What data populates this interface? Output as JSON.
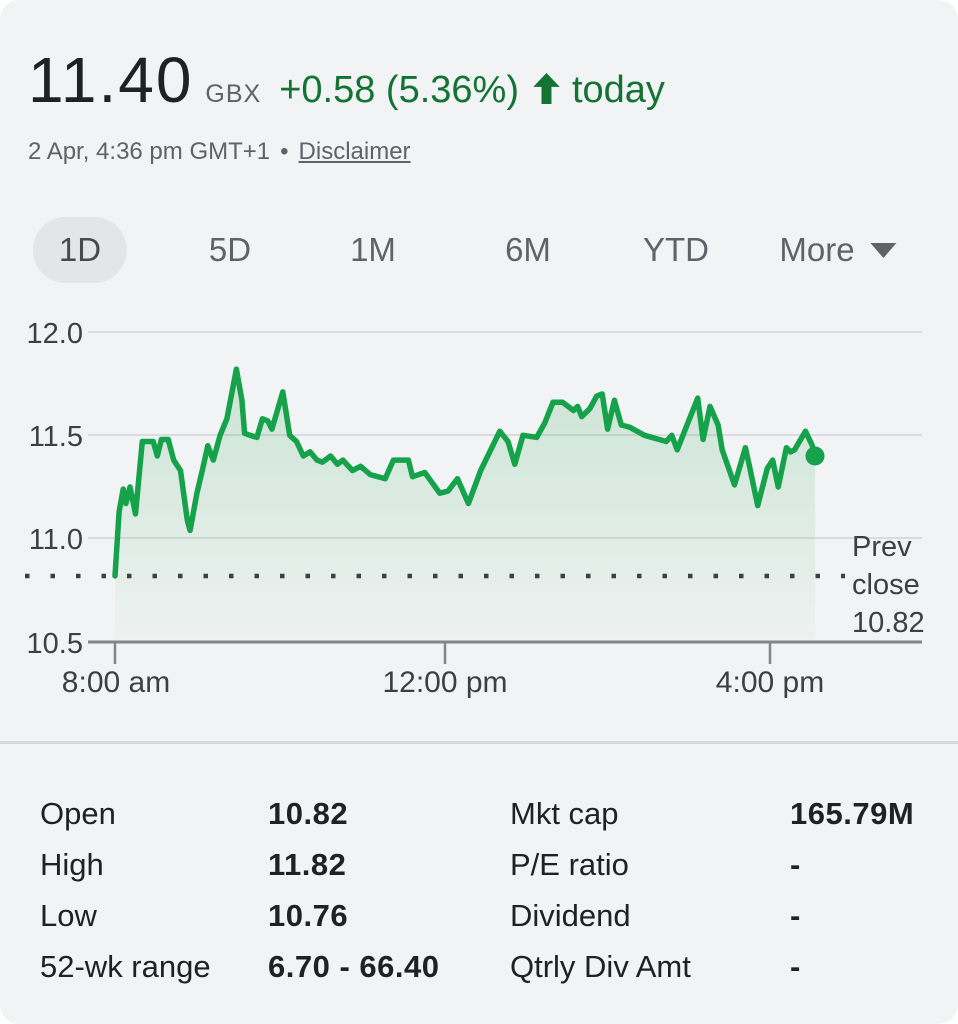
{
  "header": {
    "price": "11.40",
    "currency": "GBX",
    "change": "+0.58 (5.36%)",
    "direction": "up",
    "period": "today",
    "timestamp": "2 Apr, 4:36 pm GMT+1",
    "separator": "•",
    "disclaimer_label": "Disclaimer",
    "positive_color": "#137333"
  },
  "tabs": {
    "items": [
      {
        "label": "1D",
        "selected": true
      },
      {
        "label": "5D",
        "selected": false
      },
      {
        "label": "1M",
        "selected": false
      },
      {
        "label": "6M",
        "selected": false
      },
      {
        "label": "YTD",
        "selected": false
      },
      {
        "label": "More",
        "selected": false,
        "has_dropdown": true
      }
    ]
  },
  "chart_data": {
    "type": "area",
    "title": "1D intraday price chart",
    "x_unit": "minutes since 8:00 am",
    "x_ticks": [
      "8:00 am",
      "12:00 pm",
      "4:00 pm"
    ],
    "x_tick_minutes": [
      0,
      240,
      480
    ],
    "y_ticks": [
      "12.0",
      "11.5",
      "11.0",
      "10.5"
    ],
    "ylim": [
      10.5,
      12.0
    ],
    "xlim_minutes": [
      0,
      513
    ],
    "grid": true,
    "legend": "none",
    "prev_close": {
      "value": 10.82,
      "label_lines": [
        "Prev",
        "close",
        "10.82"
      ]
    },
    "colors": {
      "line": "#15a24b",
      "fill": "#34a853",
      "grid": "#d9dbde",
      "axis": "#80868b"
    },
    "series": [
      {
        "name": "price_gbx",
        "points": [
          [
            0,
            10.82
          ],
          [
            3,
            11.13
          ],
          [
            6,
            11.24
          ],
          [
            8,
            11.17
          ],
          [
            11,
            11.25
          ],
          [
            15,
            11.12
          ],
          [
            20,
            11.47
          ],
          [
            28,
            11.47
          ],
          [
            31,
            11.4
          ],
          [
            34,
            11.48
          ],
          [
            39,
            11.48
          ],
          [
            43,
            11.38
          ],
          [
            48,
            11.33
          ],
          [
            53,
            11.09
          ],
          [
            55,
            11.04
          ],
          [
            60,
            11.22
          ],
          [
            64,
            11.33
          ],
          [
            68,
            11.45
          ],
          [
            72,
            11.38
          ],
          [
            77,
            11.5
          ],
          [
            82,
            11.58
          ],
          [
            89,
            11.82
          ],
          [
            93,
            11.67
          ],
          [
            95,
            11.51
          ],
          [
            99,
            11.5
          ],
          [
            104,
            11.49
          ],
          [
            108,
            11.58
          ],
          [
            112,
            11.57
          ],
          [
            115,
            11.53
          ],
          [
            119,
            11.62
          ],
          [
            123,
            11.71
          ],
          [
            128,
            11.5
          ],
          [
            133,
            11.47
          ],
          [
            138,
            11.4
          ],
          [
            143,
            11.42
          ],
          [
            148,
            11.38
          ],
          [
            152,
            11.37
          ],
          [
            158,
            11.4
          ],
          [
            163,
            11.36
          ],
          [
            167,
            11.38
          ],
          [
            174,
            11.33
          ],
          [
            180,
            11.35
          ],
          [
            187,
            11.31
          ],
          [
            198,
            11.29
          ],
          [
            204,
            11.38
          ],
          [
            215,
            11.38
          ],
          [
            218,
            11.3
          ],
          [
            227,
            11.32
          ],
          [
            238,
            11.22
          ],
          [
            244,
            11.23
          ],
          [
            251,
            11.29
          ],
          [
            259,
            11.17
          ],
          [
            268,
            11.33
          ],
          [
            282,
            11.52
          ],
          [
            288,
            11.47
          ],
          [
            293,
            11.36
          ],
          [
            299,
            11.5
          ],
          [
            309,
            11.49
          ],
          [
            315,
            11.56
          ],
          [
            321,
            11.66
          ],
          [
            328,
            11.66
          ],
          [
            336,
            11.62
          ],
          [
            339,
            11.64
          ],
          [
            342,
            11.59
          ],
          [
            348,
            11.63
          ],
          [
            353,
            11.69
          ],
          [
            357,
            11.7
          ],
          [
            361,
            11.53
          ],
          [
            366,
            11.67
          ],
          [
            371,
            11.55
          ],
          [
            377,
            11.54
          ],
          [
            388,
            11.5
          ],
          [
            404,
            11.47
          ],
          [
            408,
            11.5
          ],
          [
            412,
            11.43
          ],
          [
            427,
            11.68
          ],
          [
            431,
            11.48
          ],
          [
            436,
            11.64
          ],
          [
            442,
            11.55
          ],
          [
            445,
            11.43
          ],
          [
            454,
            11.26
          ],
          [
            462,
            11.44
          ],
          [
            465,
            11.35
          ],
          [
            471,
            11.16
          ],
          [
            478,
            11.34
          ],
          [
            482,
            11.38
          ],
          [
            486,
            11.25
          ],
          [
            492,
            11.44
          ],
          [
            495,
            11.42
          ],
          [
            498,
            11.43
          ],
          [
            506,
            11.52
          ],
          [
            511,
            11.45
          ],
          [
            513,
            11.4
          ]
        ]
      }
    ]
  },
  "stats": {
    "left": [
      {
        "label": "Open",
        "value": "10.82"
      },
      {
        "label": "High",
        "value": "11.82"
      },
      {
        "label": "Low",
        "value": "10.76"
      },
      {
        "label": "52-wk range",
        "value": "6.70 - 66.40"
      }
    ],
    "right": [
      {
        "label": "Mkt cap",
        "value": "165.79M"
      },
      {
        "label": "P/E ratio",
        "value": "-"
      },
      {
        "label": "Dividend",
        "value": "-"
      },
      {
        "label": "Qtrly Div Amt",
        "value": "-"
      }
    ]
  }
}
